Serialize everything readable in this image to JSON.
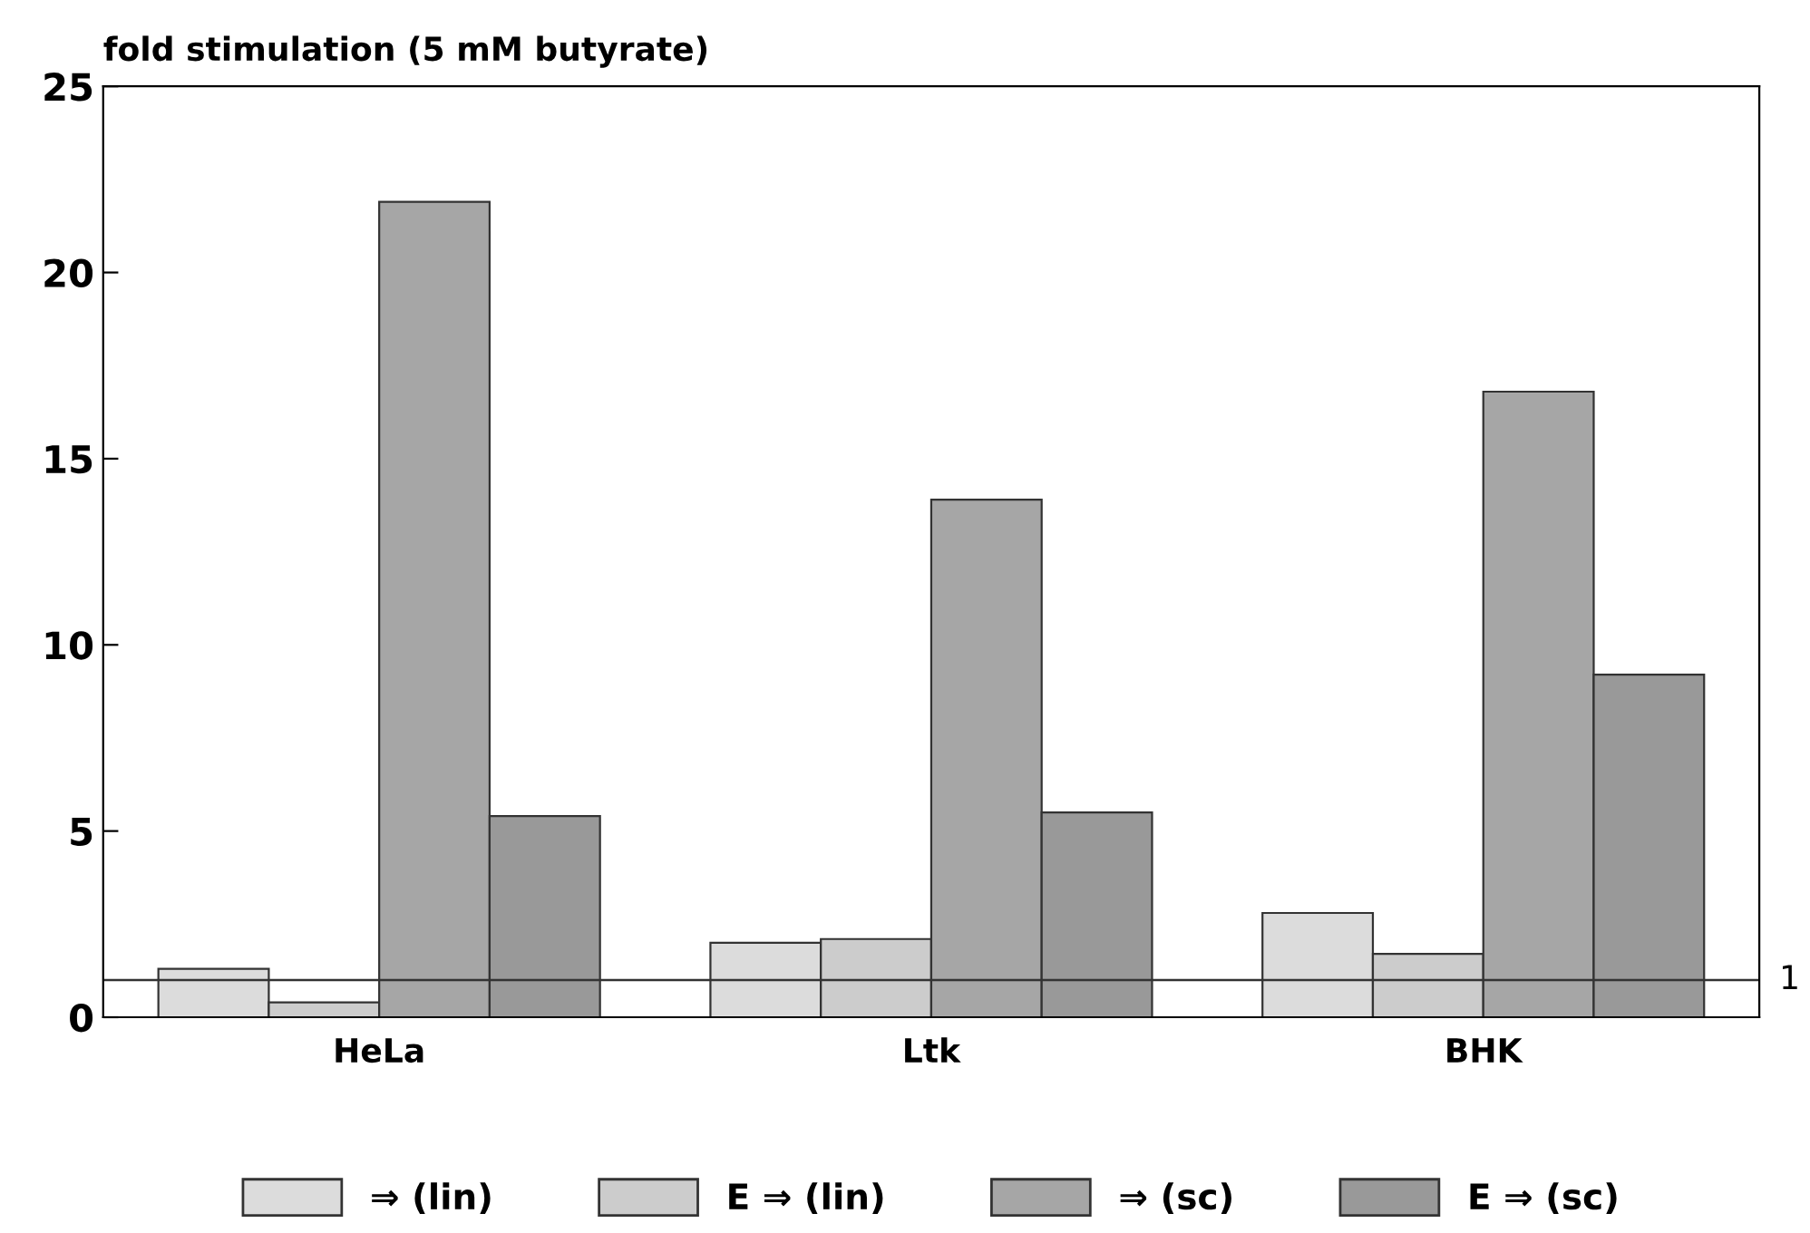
{
  "chart_data": {
    "type": "bar",
    "ylabel": "fold stimulation (5 mM butyrate)",
    "categories": [
      "HeLa",
      "Ltk",
      "BHK"
    ],
    "series": [
      {
        "name": "⇒ (lin)",
        "color": "#dcdcdc",
        "values": [
          1.3,
          2.0,
          2.8
        ]
      },
      {
        "name": "E ⇒ (lin)",
        "color": "#cccccc",
        "values": [
          0.4,
          2.1,
          1.7
        ]
      },
      {
        "name": "⇒ (sc)",
        "color": "#a6a6a6",
        "values": [
          21.9,
          13.9,
          16.8
        ]
      },
      {
        "name": "E ⇒ (sc)",
        "color": "#999999",
        "values": [
          5.4,
          5.5,
          9.2
        ]
      }
    ],
    "ylim": [
      0,
      25
    ],
    "yticks": [
      0,
      5,
      10,
      15,
      20,
      25
    ],
    "ref_lines": [
      {
        "axis": "y",
        "value": 1,
        "label": "1",
        "color": "#333333"
      }
    ],
    "grid": false,
    "legend": "bottom"
  }
}
